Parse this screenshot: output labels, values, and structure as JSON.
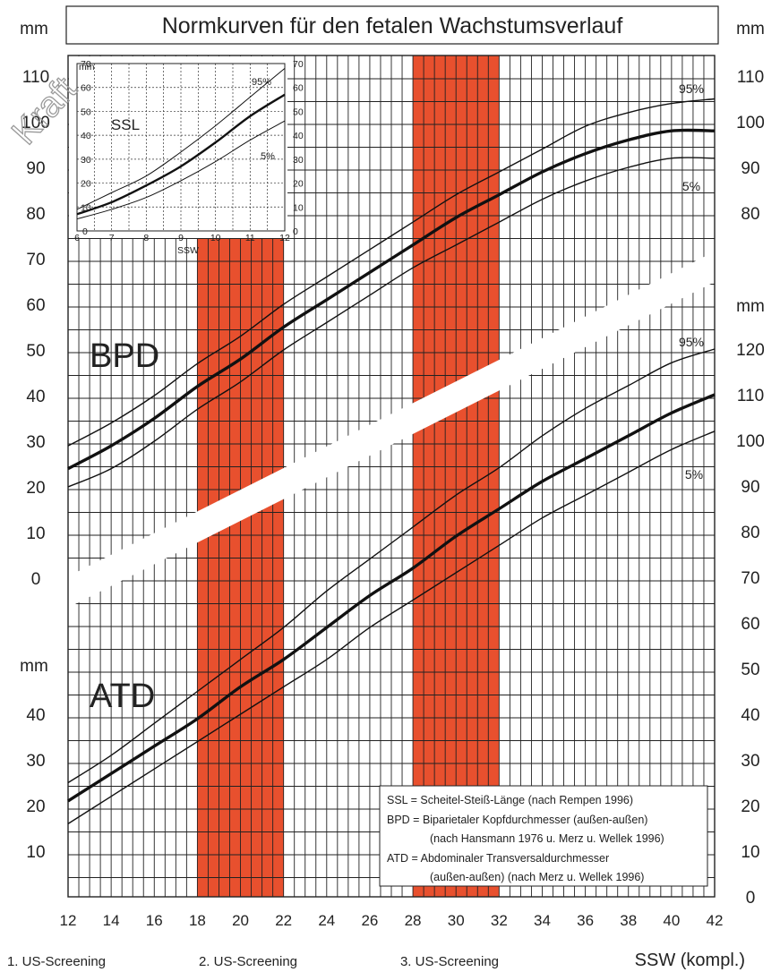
{
  "title": "Normkurven für den fetalen Wachstumsverlauf",
  "unit_left": "mm",
  "unit_right": "mm",
  "watermark": "Kraft",
  "colors": {
    "screening_band": "#E8502E",
    "grid": "#222222",
    "curve": "#111111"
  },
  "x_axis": {
    "label": "SSW (kompl.)",
    "ticks": [
      "12",
      "14",
      "16",
      "18",
      "20",
      "22",
      "24",
      "26",
      "28",
      "30",
      "32",
      "34",
      "36",
      "38",
      "40",
      "42"
    ]
  },
  "screenings": [
    {
      "label": "1. US-Screening"
    },
    {
      "label": "2. US-Screening"
    },
    {
      "label": "3. US-Screening"
    }
  ],
  "left_axis": {
    "bpd_ticks": [
      "110",
      "100",
      "90",
      "80",
      "70",
      "60",
      "50",
      "40",
      "30",
      "20",
      "10",
      "0"
    ],
    "atd_unit": "mm",
    "atd_ticks": [
      "40",
      "30",
      "20",
      "10"
    ]
  },
  "right_axis": {
    "bpd_ticks": [
      "110",
      "100",
      "90",
      "80"
    ],
    "atd_unit": "mm",
    "atd_ticks": [
      "120",
      "110",
      "100",
      "90",
      "80",
      "70",
      "60",
      "50",
      "40",
      "30",
      "20",
      "10",
      "0"
    ]
  },
  "labels": {
    "bpd": "BPD",
    "atd": "ATD",
    "bpd_p95": "95%",
    "bpd_p5": "5%",
    "atd_p95": "95%",
    "atd_p5": "5%"
  },
  "legend": [
    "SSL  = Scheitel-Steiß-Länge (nach Rempen 1996)",
    "BPD = Biparietaler Kopfdurchmesser (außen-außen)",
    "(nach Hansmann 1976 u. Merz u. Wellek 1996)",
    "ATD = Abdominaler Transversaldurchmesser",
    "(außen-außen) (nach Merz u. Wellek 1996)"
  ],
  "inset": {
    "title": "SSL",
    "unit": "mm",
    "x_label": "SSW",
    "x_ticks": [
      "6",
      "7",
      "8",
      "9",
      "10",
      "11",
      "12"
    ],
    "y_ticks": [
      "0",
      "10",
      "20",
      "30",
      "40",
      "50",
      "60",
      "70"
    ],
    "p95": "95%",
    "p5": "5%"
  },
  "chart_data": [
    {
      "type": "line",
      "name": "BPD",
      "xlabel": "SSW (kompl.)",
      "ylabel": "mm",
      "xlim": [
        12,
        42
      ],
      "ylim": [
        0,
        110
      ],
      "x": [
        12,
        14,
        16,
        18,
        20,
        22,
        24,
        26,
        28,
        30,
        32,
        34,
        36,
        38,
        40,
        42
      ],
      "series": [
        {
          "name": "95%",
          "values": [
            29,
            34,
            40,
            47,
            53,
            60,
            66,
            72,
            78,
            84,
            89,
            94,
            99,
            102,
            104,
            105
          ]
        },
        {
          "name": "50%",
          "values": [
            24,
            29,
            35,
            42,
            48,
            55,
            61,
            67,
            73,
            79,
            84,
            89,
            93,
            96,
            98,
            98
          ]
        },
        {
          "name": "5%",
          "values": [
            20,
            24,
            30,
            37,
            43,
            50,
            56,
            62,
            68,
            73,
            78,
            83,
            87,
            90,
            92,
            92
          ]
        }
      ],
      "screening_windows": [
        [
          9,
          12
        ],
        [
          18,
          22
        ],
        [
          28,
          32
        ]
      ]
    },
    {
      "type": "line",
      "name": "ATD",
      "xlabel": "SSW (kompl.)",
      "ylabel": "mm",
      "xlim": [
        12,
        42
      ],
      "ylim": [
        0,
        120
      ],
      "x": [
        12,
        14,
        16,
        18,
        20,
        22,
        24,
        26,
        28,
        30,
        32,
        34,
        36,
        38,
        40,
        42
      ],
      "series": [
        {
          "name": "95%",
          "values": [
            25,
            31,
            38,
            45,
            52,
            59,
            67,
            74,
            81,
            88,
            94,
            101,
            107,
            112,
            117,
            120
          ]
        },
        {
          "name": "50%",
          "values": [
            21,
            27,
            33,
            39,
            46,
            52,
            59,
            66,
            72,
            79,
            85,
            91,
            96,
            101,
            106,
            110
          ]
        },
        {
          "name": "5%",
          "values": [
            16,
            22,
            28,
            34,
            40,
            46,
            52,
            59,
            65,
            71,
            77,
            83,
            88,
            93,
            98,
            102
          ]
        }
      ]
    },
    {
      "type": "line",
      "name": "SSL",
      "xlabel": "SSW",
      "ylabel": "mm",
      "xlim": [
        6,
        12
      ],
      "ylim": [
        0,
        70
      ],
      "x": [
        6,
        7,
        8,
        9,
        10,
        11,
        12
      ],
      "series": [
        {
          "name": "95%",
          "values": [
            9,
            16,
            23,
            33,
            44,
            56,
            68
          ]
        },
        {
          "name": "50%",
          "values": [
            7,
            12,
            19,
            27,
            37,
            48,
            57
          ]
        },
        {
          "name": "5%",
          "values": [
            5,
            9,
            14,
            21,
            29,
            38,
            46
          ]
        }
      ]
    }
  ]
}
